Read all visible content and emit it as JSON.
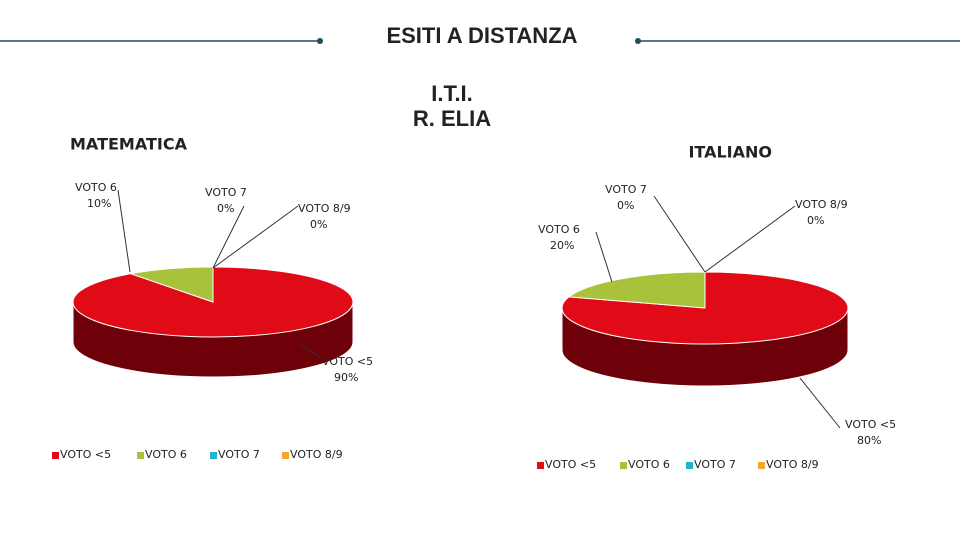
{
  "header": {
    "title": "ESITI A DISTANZA",
    "school": [
      "I.T.I.",
      "R. ELIA"
    ]
  },
  "chart_data": [
    {
      "type": "pie",
      "title": "MATEMATICA",
      "categories": [
        "VOTO  <5",
        "VOTO 6",
        "VOTO 7",
        "VOTO 8/9"
      ],
      "values": [
        90,
        10,
        0,
        0
      ],
      "value_labels": [
        "90%",
        "10%",
        "0%",
        "0%"
      ],
      "colors": [
        "#e10a17",
        "#a9c23c",
        "#20b5c8",
        "#f3a630"
      ],
      "legend": "bottom"
    },
    {
      "type": "pie",
      "title": "ITALIANO",
      "categories": [
        "VOTO  <5",
        "VOTO 6",
        "VOTO 7",
        "VOTO 8/9"
      ],
      "values": [
        80,
        20,
        0,
        0
      ],
      "value_labels": [
        "80%",
        "20%",
        "0%",
        "0%"
      ],
      "colors": [
        "#e10a17",
        "#a9c23c",
        "#20b5c8",
        "#f3a630"
      ],
      "legend": "bottom"
    }
  ]
}
